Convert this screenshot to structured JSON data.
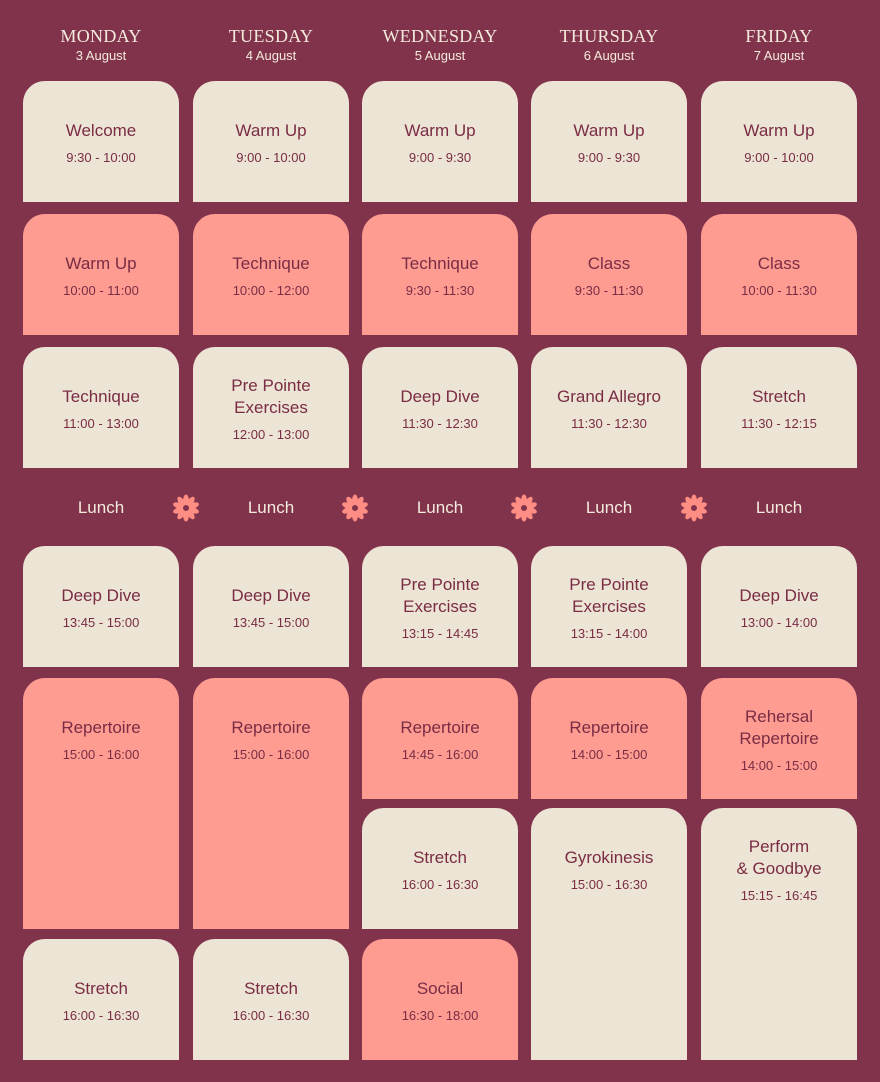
{
  "days": [
    {
      "name": "MONDAY",
      "date": "3 August",
      "lunch": "Lunch",
      "sessions": [
        {
          "title": [
            "Welcome"
          ],
          "time": "9:30 - 10:00",
          "color": "#ece4d4"
        },
        {
          "title": [
            "Warm Up"
          ],
          "time": "10:00 - 11:00",
          "color": "#fe9c92"
        },
        {
          "title": [
            "Technique"
          ],
          "time": "11:00 - 13:00",
          "color": "#ece4d4"
        },
        {
          "title": [
            "Deep Dive"
          ],
          "time": "13:45 - 15:00",
          "color": "#ece4d4"
        },
        {
          "title": [
            "Repertoire"
          ],
          "time": "15:00 - 16:00",
          "color": "#fe9c92"
        },
        {
          "title": [
            "Stretch"
          ],
          "time": "16:00 - 16:30",
          "color": "#ece4d4"
        }
      ]
    },
    {
      "name": "TUESDAY",
      "date": "4 August",
      "lunch": "Lunch",
      "sessions": [
        {
          "title": [
            "Warm Up"
          ],
          "time": "9:00 - 10:00",
          "color": "#ece4d4"
        },
        {
          "title": [
            "Technique"
          ],
          "time": "10:00 - 12:00",
          "color": "#fe9c92"
        },
        {
          "title": [
            "Pre Pointe",
            "Exercises"
          ],
          "time": "12:00 - 13:00",
          "color": "#ece4d4"
        },
        {
          "title": [
            "Deep Dive"
          ],
          "time": "13:45 - 15:00",
          "color": "#ece4d4"
        },
        {
          "title": [
            "Repertoire"
          ],
          "time": "15:00 - 16:00",
          "color": "#fe9c92"
        },
        {
          "title": [
            "Stretch"
          ],
          "time": "16:00 - 16:30",
          "color": "#ece4d4"
        }
      ]
    },
    {
      "name": "WEDNESDAY",
      "date": "5 August",
      "lunch": "Lunch",
      "sessions": [
        {
          "title": [
            "Warm Up"
          ],
          "time": "9:00 - 9:30",
          "color": "#ece4d4"
        },
        {
          "title": [
            "Technique"
          ],
          "time": "9:30 - 11:30",
          "color": "#fe9c92"
        },
        {
          "title": [
            "Deep Dive"
          ],
          "time": "11:30 - 12:30",
          "color": "#ece4d4"
        },
        {
          "title": [
            "Pre Pointe",
            "Exercises"
          ],
          "time": "13:15 - 14:45",
          "color": "#ece4d4"
        },
        {
          "title": [
            "Repertoire"
          ],
          "time": "14:45 - 16:00",
          "color": "#fe9c92"
        },
        {
          "title": [
            "Stretch"
          ],
          "time": "16:00 - 16:30",
          "color": "#ece4d4"
        },
        {
          "title": [
            "Social"
          ],
          "time": "16:30 - 18:00",
          "color": "#fe9c92"
        }
      ]
    },
    {
      "name": "THURSDAY",
      "date": "6 August",
      "lunch": "Lunch",
      "sessions": [
        {
          "title": [
            "Warm Up"
          ],
          "time": "9:00 - 9:30",
          "color": "#ece4d4"
        },
        {
          "title": [
            "Class"
          ],
          "time": "9:30 - 11:30",
          "color": "#fe9c92"
        },
        {
          "title": [
            "Grand Allegro"
          ],
          "time": "11:30 - 12:30",
          "color": "#ece4d4"
        },
        {
          "title": [
            "Pre Pointe",
            "Exercises"
          ],
          "time": "13:15 - 14:00",
          "color": "#ece4d4"
        },
        {
          "title": [
            "Repertoire"
          ],
          "time": "14:00 - 15:00",
          "color": "#fe9c92"
        },
        {
          "title": [
            "Gyrokinesis"
          ],
          "time": "15:00 - 16:30",
          "color": "#ece4d4"
        }
      ]
    },
    {
      "name": "FRIDAY",
      "date": "7 August",
      "lunch": "Lunch",
      "sessions": [
        {
          "title": [
            "Warm Up"
          ],
          "time": "9:00 - 10:00",
          "color": "#ece4d4"
        },
        {
          "title": [
            "Class"
          ],
          "time": "10:00 - 11:30",
          "color": "#fe9c92"
        },
        {
          "title": [
            "Stretch"
          ],
          "time": "11:30 - 12:15",
          "color": "#ece4d4"
        },
        {
          "title": [
            "Deep Dive"
          ],
          "time": "13:00 - 14:00",
          "color": "#ece4d4"
        },
        {
          "title": [
            "Rehersal",
            "Repertoire"
          ],
          "time": "14:00 - 15:00",
          "color": "#fe9c92"
        },
        {
          "title": [
            "Perform",
            "& Goodbye"
          ],
          "time": "15:15 - 16:45",
          "color": "#ece4d4"
        }
      ]
    }
  ]
}
